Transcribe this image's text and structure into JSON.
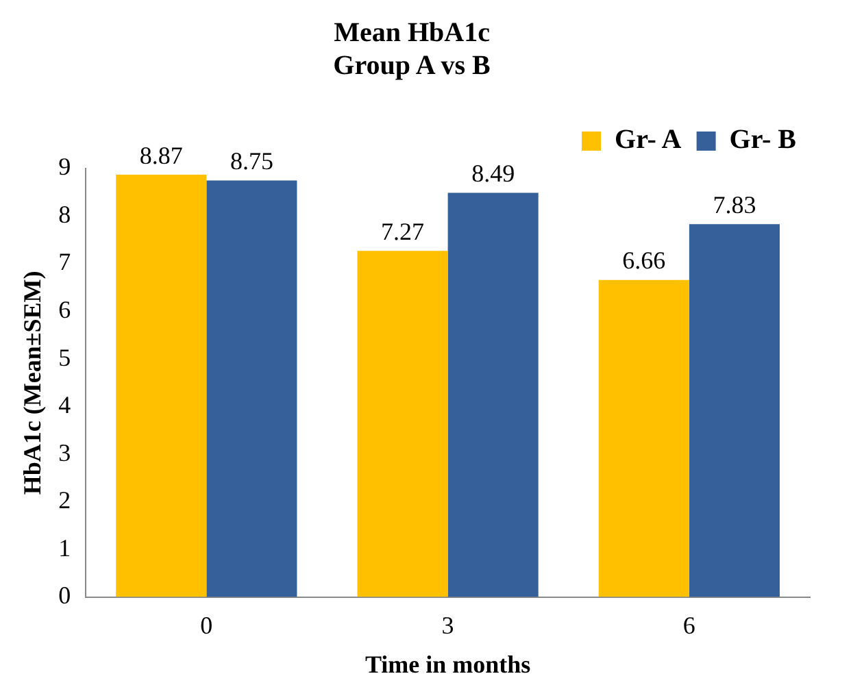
{
  "chart_data": {
    "type": "bar",
    "title": "Mean HbA1c\nGroup A vs B",
    "xlabel": "Time in months",
    "ylabel": "HbA1c (Mean±SEM)",
    "categories": [
      "0",
      "3",
      "6"
    ],
    "series": [
      {
        "name": "Gr- A",
        "color": "#ffc000",
        "values": [
          8.87,
          7.27,
          6.66
        ]
      },
      {
        "name": "Gr- B",
        "color": "#35609a",
        "values": [
          8.75,
          8.49,
          7.83
        ]
      }
    ],
    "ylim": [
      0,
      9
    ],
    "yticks": [
      0,
      1,
      2,
      3,
      4,
      5,
      6,
      7,
      8,
      9
    ],
    "grid": false,
    "legend": "top right",
    "data_labels": true
  }
}
